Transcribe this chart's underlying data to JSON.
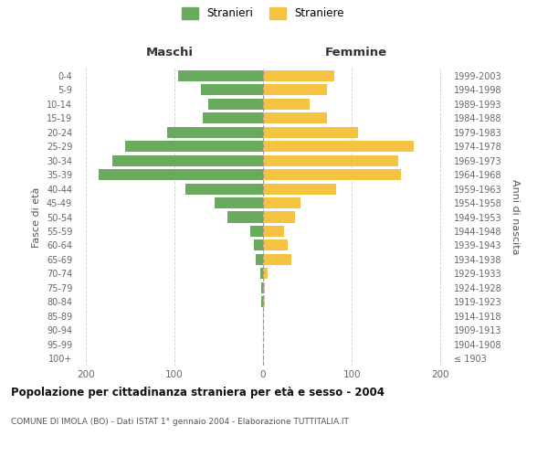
{
  "age_groups": [
    "100+",
    "95-99",
    "90-94",
    "85-89",
    "80-84",
    "75-79",
    "70-74",
    "65-69",
    "60-64",
    "55-59",
    "50-54",
    "45-49",
    "40-44",
    "35-39",
    "30-34",
    "25-29",
    "20-24",
    "15-19",
    "10-14",
    "5-9",
    "0-4"
  ],
  "birth_years": [
    "≤ 1903",
    "1904-1908",
    "1909-1913",
    "1914-1918",
    "1919-1923",
    "1924-1928",
    "1929-1933",
    "1934-1938",
    "1939-1943",
    "1944-1948",
    "1949-1953",
    "1954-1958",
    "1959-1963",
    "1964-1968",
    "1969-1973",
    "1974-1978",
    "1979-1983",
    "1984-1988",
    "1989-1993",
    "1994-1998",
    "1999-2003"
  ],
  "males": [
    0,
    0,
    0,
    0,
    2,
    2,
    3,
    8,
    10,
    14,
    40,
    55,
    88,
    185,
    170,
    155,
    108,
    68,
    62,
    70,
    96
  ],
  "females": [
    0,
    0,
    0,
    0,
    2,
    2,
    5,
    32,
    28,
    24,
    36,
    42,
    82,
    155,
    152,
    170,
    107,
    72,
    52,
    72,
    80
  ],
  "male_color": "#6aaa5f",
  "female_color": "#f5c242",
  "title": "Popolazione per cittadinanza straniera per età e sesso - 2004",
  "subtitle": "COMUNE DI IMOLA (BO) - Dati ISTAT 1° gennaio 2004 - Elaborazione TUTTITALIA.IT",
  "label_maschi": "Maschi",
  "label_femmine": "Femmine",
  "ylabel_left": "Fasce di età",
  "ylabel_right": "Anni di nascita",
  "legend_male": "Stranieri",
  "legend_female": "Straniere",
  "xlim": 210,
  "background_color": "#ffffff",
  "grid_color": "#cccccc"
}
